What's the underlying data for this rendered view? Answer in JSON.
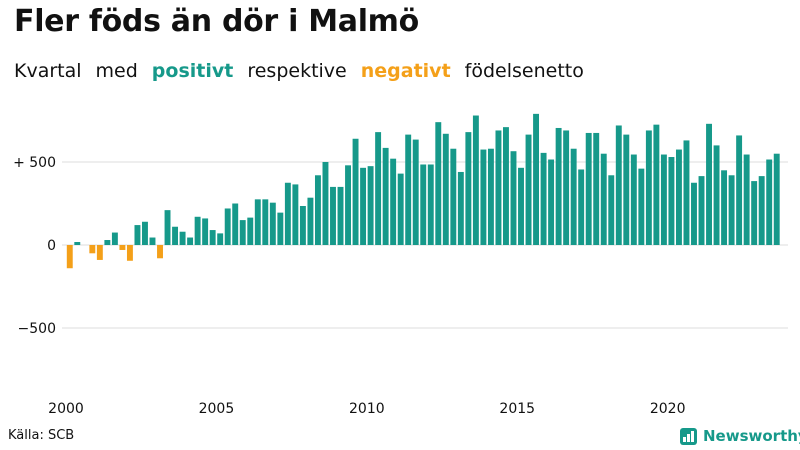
{
  "title": "Fler föds än dör i Malmö",
  "subtitle": {
    "part1": "Kvartal",
    "part2": "med",
    "positive": "positivt",
    "part3": "respektive",
    "negative": "negativt",
    "part4": "födelsenetto"
  },
  "source": "Källa: SCB",
  "brand": {
    "name": "Newsworthy",
    "icon": "bar-chart-logo-icon"
  },
  "colors": {
    "positive": "#16998a",
    "negative": "#f4a019",
    "gridline": "#dddddd",
    "text": "#111111",
    "brand": "#16998a"
  },
  "chart_data": {
    "type": "bar",
    "xlabel": "",
    "ylabel": "",
    "x_start": 2000,
    "x_end": 2024,
    "periods_per_year": 4,
    "ylim": [
      -800,
      800
    ],
    "y_ticks": [
      {
        "value": 500,
        "label": "+ 500"
      },
      {
        "value": 0,
        "label": "0"
      },
      {
        "value": -500,
        "label": "−500"
      }
    ],
    "x_ticks": [
      2000,
      2005,
      2010,
      2015,
      2020
    ],
    "grid": true,
    "values": [
      -140,
      18,
      0,
      -50,
      -90,
      30,
      75,
      -30,
      -95,
      120,
      140,
      45,
      -80,
      210,
      110,
      80,
      45,
      170,
      160,
      90,
      70,
      220,
      250,
      150,
      165,
      275,
      275,
      255,
      195,
      375,
      365,
      235,
      285,
      420,
      500,
      350,
      350,
      480,
      640,
      465,
      475,
      680,
      585,
      520,
      430,
      665,
      635,
      485,
      485,
      740,
      670,
      580,
      440,
      680,
      780,
      575,
      580,
      690,
      710,
      565,
      465,
      665,
      790,
      555,
      515,
      705,
      690,
      580,
      455,
      675,
      675,
      550,
      420,
      720,
      665,
      545,
      460,
      690,
      725,
      545,
      530,
      575,
      630,
      375,
      415,
      730,
      600,
      450,
      420,
      660,
      545,
      385,
      415,
      515,
      550
    ]
  }
}
